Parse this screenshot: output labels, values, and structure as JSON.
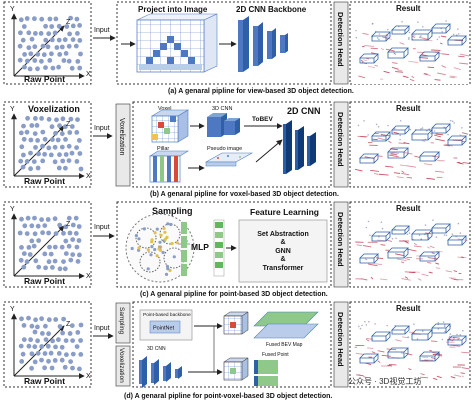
{
  "common": {
    "raw_point": "Raw Point",
    "axis_y": "Y",
    "axis_x": "X",
    "axis_z": "Z",
    "input": "Input",
    "detection_head": "Detection Head",
    "result": "Result"
  },
  "row_a": {
    "project": "Project into Image",
    "backbone": "2D CNN Backbone",
    "caption": "(a)  A genaral pipline for view-based 3D object detection."
  },
  "row_b": {
    "voxelization_title": "Voxelization",
    "voxelization_label": "Voxelization",
    "voxel": "Voxel",
    "cnn3d": "3D CNN",
    "pillar": "Pillar",
    "pseudo": "Pseudo image",
    "tobev": "ToBEV",
    "cnn2d": "2D CNN",
    "caption": "(b)  A genaral pipline for voxel-based 3D object detection."
  },
  "row_c": {
    "sampling": "Sampling",
    "mlp": "MLP",
    "feature_learning": "Feature Learning",
    "fl_items": [
      "Set Abstraction",
      "&",
      "GNN",
      "&",
      "Transformer"
    ],
    "caption": "(c)  A genaral pipline for point-based 3D object detection."
  },
  "row_d": {
    "sampling_label": "Sampling",
    "voxelization_label": "Voxelization",
    "point_backbone": "Point-based backbone",
    "pointnet": "PointNet",
    "cnn3d": "3D CNN",
    "fused_bev": "Fused BEV Map",
    "fused_point": "Fused Point",
    "caption": "(d)  A genaral pipline for point-voxel-based 3D object detection."
  },
  "watermark": "公众号 · 3D视觉工坊",
  "colors": {
    "point": "#8a9dc9",
    "blue": "#4f78c2",
    "dark_blue": "#1e4a86",
    "light_blue": "#b9cdea",
    "red_box": "#d84a3a",
    "green": "#8fc98a",
    "result_red": "#c23a52"
  }
}
